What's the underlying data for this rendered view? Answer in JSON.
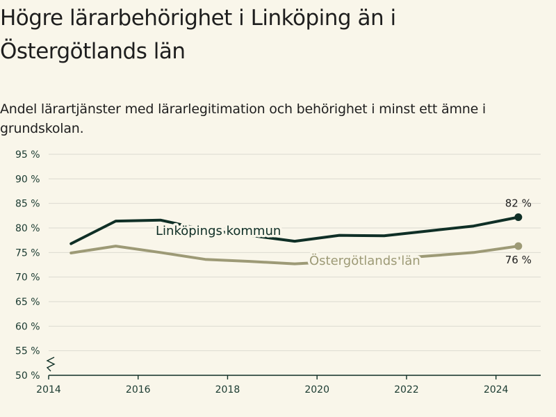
{
  "title": "Högre lärarbehörighet i Linköping än i Östergötlands län",
  "subtitle": "Andel lärartjänster med lärarlegitimation och behörighet i minst ett ämne i grundskolan.",
  "colors": {
    "background": "#f9f6ea",
    "linkoping": "#0f2f26",
    "lan": "#9d9a76",
    "grid": "#dcdad0",
    "axis": "#0f2f26"
  },
  "chart_data": {
    "type": "line",
    "x_axis": {
      "range": [
        2014,
        2025
      ],
      "ticks": [
        2014,
        2016,
        2018,
        2020,
        2022,
        2024
      ],
      "tick_labels": [
        "2014",
        "2016",
        "2018",
        "2020",
        "2022",
        "2024"
      ]
    },
    "y_axis": {
      "range": [
        50,
        95
      ],
      "ticks": [
        50,
        55,
        60,
        65,
        70,
        75,
        80,
        85,
        90,
        95
      ],
      "tick_labels": [
        "50 %",
        "55 %",
        "60 %",
        "65 %",
        "70 %",
        "75 %",
        "80 %",
        "85 %",
        "90 %",
        "95 %"
      ],
      "axis_break": true
    },
    "grid": "horizontal",
    "series": [
      {
        "key": "linkoping",
        "name": "Linköpings kommun",
        "x": [
          2014.5,
          2015.5,
          2016.5,
          2017.5,
          2018.5,
          2019.5,
          2020.5,
          2021.5,
          2022.5,
          2023.5,
          2024.5
        ],
        "values": [
          76.8,
          81.4,
          81.6,
          79.6,
          78.5,
          77.3,
          78.5,
          78.4,
          79.4,
          80.4,
          82.2
        ],
        "end_label": "82 %"
      },
      {
        "key": "lan",
        "name": "Östergötlands län",
        "x": [
          2014.5,
          2015.5,
          2016.5,
          2017.5,
          2018.5,
          2019.5,
          2020.5,
          2021.5,
          2022.5,
          2023.5,
          2024.5
        ],
        "values": [
          74.9,
          76.3,
          75.0,
          73.6,
          73.2,
          72.7,
          73.2,
          73.6,
          74.3,
          75.0,
          76.3
        ],
        "end_label": "76 %"
      }
    ]
  }
}
